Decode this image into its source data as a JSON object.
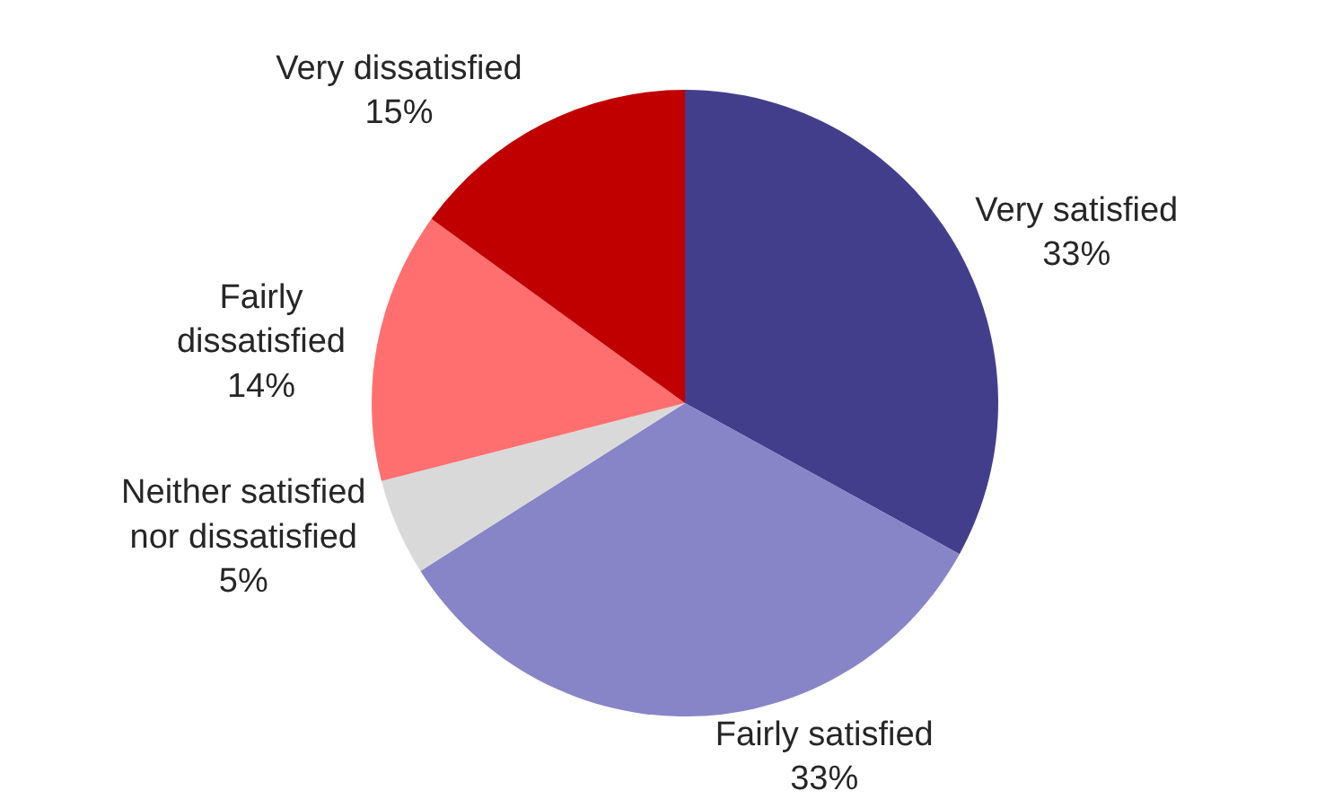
{
  "chart_data": {
    "type": "pie",
    "categories": [
      "Very satisfied",
      "Fairly satisfied",
      "Neither satisfied nor dissatisfied",
      "Fairly dissatisfied",
      "Very dissatisfied"
    ],
    "values": [
      33,
      33,
      5,
      14,
      15
    ],
    "value_labels": [
      "33%",
      "33%",
      "5%",
      "14%",
      "15%"
    ],
    "colors": [
      "#433e8c",
      "#8884c8",
      "#d9d9d9",
      "#ff6f6f",
      "#c00000"
    ],
    "legend": false
  }
}
